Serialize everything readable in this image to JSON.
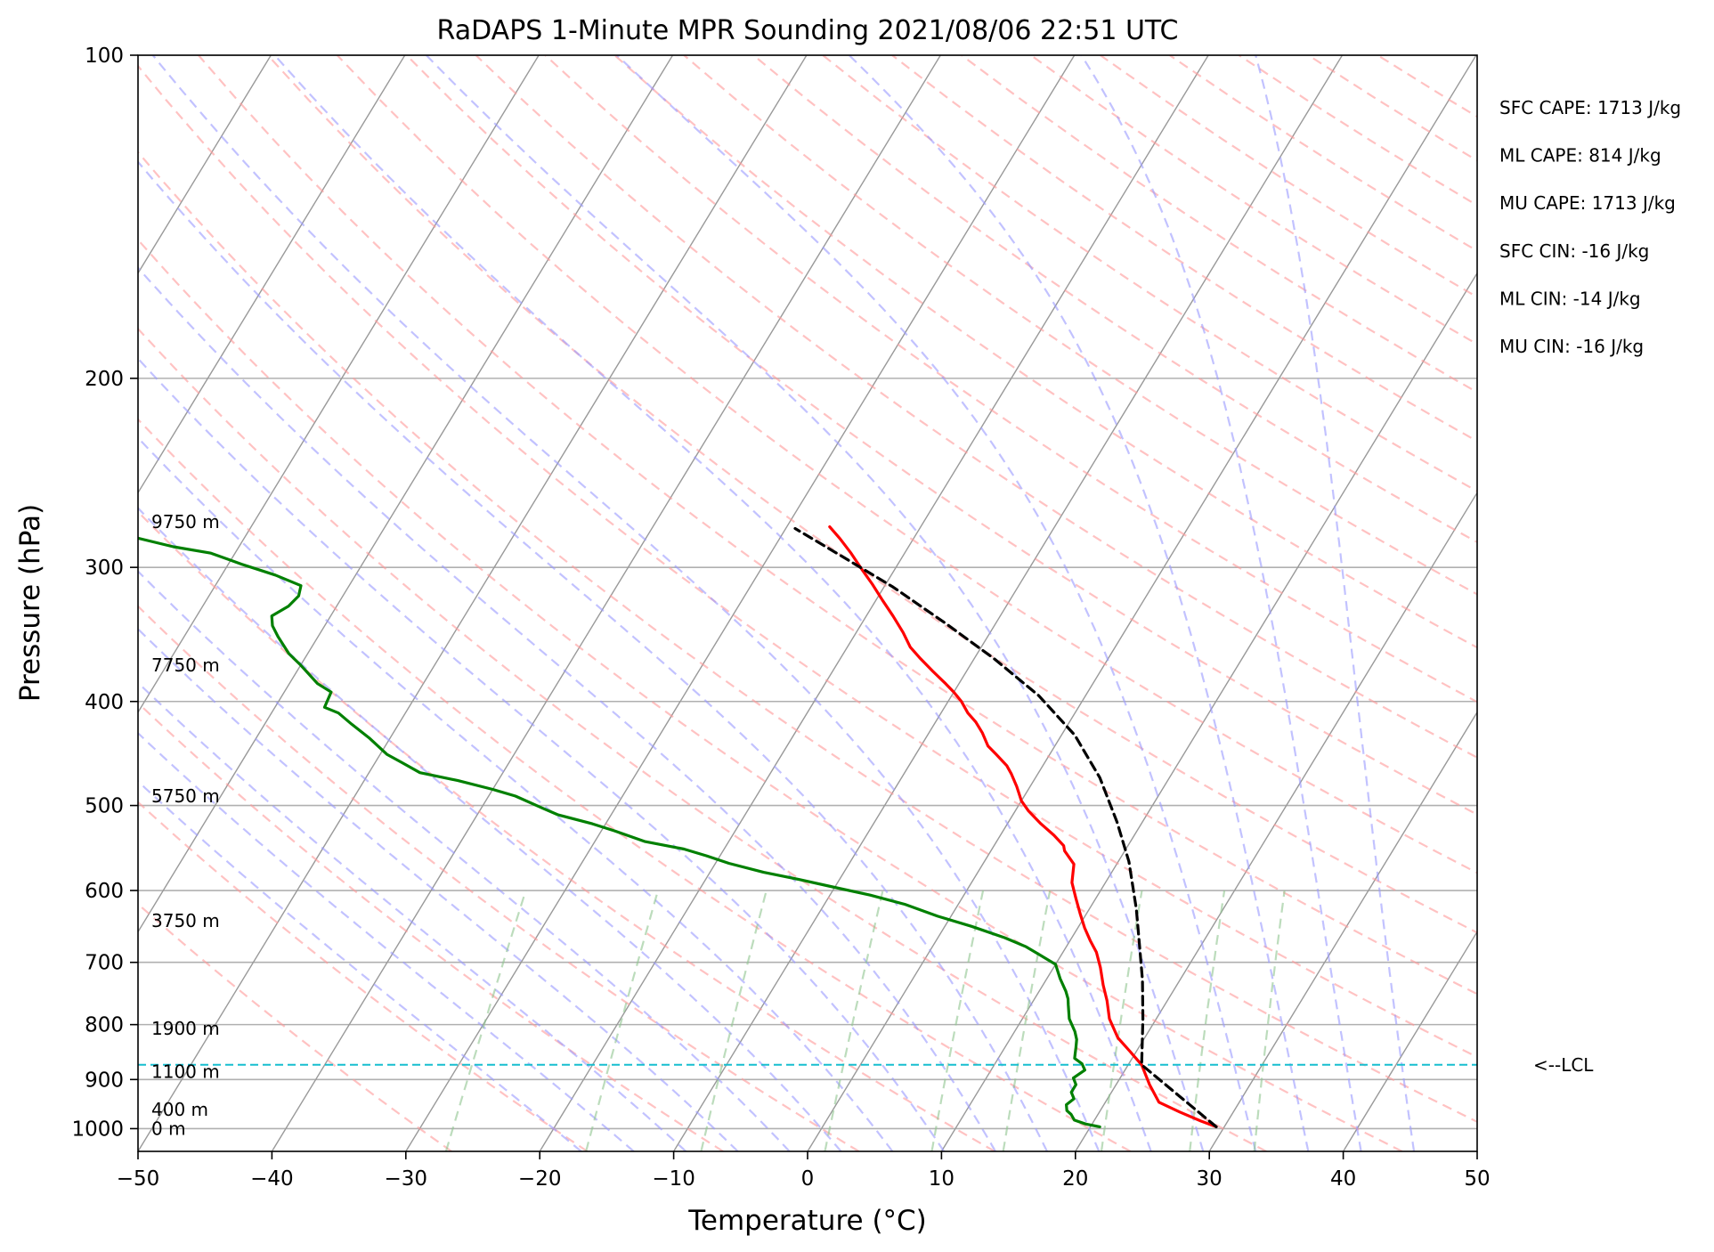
{
  "chart_data": {
    "type": "line",
    "title": "RaDAPS 1-Minute MPR Sounding 2021/08/06 22:51 UTC",
    "xlabel": "Temperature (°C)",
    "ylabel": "Pressure (hPa)",
    "xlim": [
      -50,
      50
    ],
    "ylim": [
      1050,
      100
    ],
    "y_scale": "log",
    "skew": "skew-T log-p diagram",
    "grid": true,
    "x_ticks": [
      -50,
      -40,
      -30,
      -20,
      -10,
      0,
      10,
      20,
      30,
      40,
      50
    ],
    "x_tick_labels": [
      "−50",
      "−40",
      "−30",
      "−20",
      "−10",
      "0",
      "10",
      "20",
      "30",
      "40",
      "50"
    ],
    "y_ticks": [
      100,
      200,
      300,
      400,
      500,
      600,
      700,
      800,
      900,
      1000
    ],
    "y_tick_labels": [
      "100",
      "200",
      "300",
      "400",
      "500",
      "600",
      "700",
      "800",
      "900",
      "1000"
    ],
    "height_labels": [
      {
        "text": "9750 m",
        "p": 272
      },
      {
        "text": "7750 m",
        "p": 370
      },
      {
        "text": "5750 m",
        "p": 490
      },
      {
        "text": "3750 m",
        "p": 640
      },
      {
        "text": "1900 m",
        "p": 807
      },
      {
        "text": "1100 m",
        "p": 885
      },
      {
        "text": "400 m",
        "p": 960
      },
      {
        "text": "0 m",
        "p": 1000
      }
    ],
    "indices": [
      "SFC CAPE: 1713 J/kg",
      "ML CAPE: 814 J/kg",
      "MU CAPE: 1713 J/kg",
      "SFC CIN: -16 J/kg",
      "ML CIN: -14 J/kg",
      "MU CIN: -16 J/kg"
    ],
    "lcl": {
      "p": 872,
      "label": "<--LCL",
      "color": "#17becf"
    },
    "colors": {
      "temperature": "#ff0000",
      "dewpoint": "#008000",
      "parcel": "#000000",
      "dry_adiabats": "#ff9999",
      "moist_adiabats": "#9999ff",
      "mixing_ratio": "#8fc58f",
      "isotherms": "#999999",
      "isobars": "#b0b0b0"
    },
    "series": [
      {
        "name": "temperature",
        "points": [
          {
            "t": 29.4,
            "p": 996
          },
          {
            "t": 28.0,
            "p": 984
          },
          {
            "t": 26.0,
            "p": 965
          },
          {
            "t": 24.0,
            "p": 945
          },
          {
            "t": 22.5,
            "p": 910
          },
          {
            "t": 21.0,
            "p": 872
          },
          {
            "t": 19.5,
            "p": 847
          },
          {
            "t": 18.0,
            "p": 823
          },
          {
            "t": 16.5,
            "p": 790
          },
          {
            "t": 15.5,
            "p": 760
          },
          {
            "t": 14.5,
            "p": 735
          },
          {
            "t": 13.5,
            "p": 708
          },
          {
            "t": 12.5,
            "p": 685
          },
          {
            "t": 11.5,
            "p": 668
          },
          {
            "t": 10.5,
            "p": 650
          },
          {
            "t": 9.5,
            "p": 630
          },
          {
            "t": 8.5,
            "p": 610
          },
          {
            "t": 7.5,
            "p": 590
          },
          {
            "t": 6.8,
            "p": 567
          },
          {
            "t": 5.5,
            "p": 551
          },
          {
            "t": 5.2,
            "p": 545
          },
          {
            "t": 4.0,
            "p": 533
          },
          {
            "t": 2.5,
            "p": 520
          },
          {
            "t": 1.0,
            "p": 506
          },
          {
            "t": 0.0,
            "p": 495
          },
          {
            "t": -1.0,
            "p": 480
          },
          {
            "t": -2.0,
            "p": 467
          },
          {
            "t": -2.7,
            "p": 459
          },
          {
            "t": -4.0,
            "p": 448
          },
          {
            "t": -5.0,
            "p": 440
          },
          {
            "t": -6.0,
            "p": 428
          },
          {
            "t": -7.0,
            "p": 418
          },
          {
            "t": -8.0,
            "p": 410
          },
          {
            "t": -9.0,
            "p": 400
          },
          {
            "t": -10.0,
            "p": 392
          },
          {
            "t": -11.0,
            "p": 385
          },
          {
            "t": -12.5,
            "p": 375
          },
          {
            "t": -14.0,
            "p": 365
          },
          {
            "t": -15.3,
            "p": 356
          },
          {
            "t": -16.5,
            "p": 345
          },
          {
            "t": -18.0,
            "p": 333
          },
          {
            "t": -19.5,
            "p": 322
          },
          {
            "t": -21.0,
            "p": 311
          },
          {
            "t": -22.5,
            "p": 301
          },
          {
            "t": -24.0,
            "p": 291
          },
          {
            "t": -25.5,
            "p": 282
          },
          {
            "t": -26.8,
            "p": 275
          }
        ]
      },
      {
        "name": "dewpoint",
        "points": [
          {
            "t": 20.7,
            "p": 996
          },
          {
            "t": 19.5,
            "p": 990
          },
          {
            "t": 18.5,
            "p": 982
          },
          {
            "t": 18.0,
            "p": 970
          },
          {
            "t": 17.5,
            "p": 962
          },
          {
            "t": 17.2,
            "p": 950
          },
          {
            "t": 17.5,
            "p": 938
          },
          {
            "t": 17.0,
            "p": 925
          },
          {
            "t": 17.0,
            "p": 910
          },
          {
            "t": 16.5,
            "p": 897
          },
          {
            "t": 17.0,
            "p": 882
          },
          {
            "t": 16.5,
            "p": 870
          },
          {
            "t": 15.7,
            "p": 860
          },
          {
            "t": 15.5,
            "p": 850
          },
          {
            "t": 15.3,
            "p": 840
          },
          {
            "t": 15.0,
            "p": 826
          },
          {
            "t": 14.5,
            "p": 812
          },
          {
            "t": 13.5,
            "p": 790
          },
          {
            "t": 12.8,
            "p": 767
          },
          {
            "t": 12.5,
            "p": 757
          },
          {
            "t": 12.0,
            "p": 745
          },
          {
            "t": 11.0,
            "p": 725
          },
          {
            "t": 10.0,
            "p": 703
          },
          {
            "t": 8.3,
            "p": 688
          },
          {
            "t": 7.0,
            "p": 677
          },
          {
            "t": 5.0,
            "p": 664
          },
          {
            "t": 2.0,
            "p": 648
          },
          {
            "t": -1.0,
            "p": 634
          },
          {
            "t": -4.0,
            "p": 618
          },
          {
            "t": -7.0,
            "p": 606
          },
          {
            "t": -10.0,
            "p": 596
          },
          {
            "t": -13.0,
            "p": 586
          },
          {
            "t": -16.0,
            "p": 577
          },
          {
            "t": -19.0,
            "p": 566
          },
          {
            "t": -21.0,
            "p": 557
          },
          {
            "t": -23.0,
            "p": 549
          },
          {
            "t": -26.3,
            "p": 540
          },
          {
            "t": -29.0,
            "p": 528
          },
          {
            "t": -31.0,
            "p": 520
          },
          {
            "t": -34.0,
            "p": 510
          },
          {
            "t": -35.4,
            "p": 503
          },
          {
            "t": -38.0,
            "p": 490
          },
          {
            "t": -40.0,
            "p": 483
          },
          {
            "t": -43.0,
            "p": 474
          },
          {
            "t": -46.2,
            "p": 466
          },
          {
            "t": -48.0,
            "p": 456
          },
          {
            "t": -49.5,
            "p": 448
          },
          {
            "t": -51.5,
            "p": 433
          },
          {
            "t": -53.5,
            "p": 420
          },
          {
            "t": -55.0,
            "p": 410
          },
          {
            "t": -56.3,
            "p": 405
          },
          {
            "t": -56.5,
            "p": 392
          },
          {
            "t": -57.9,
            "p": 385
          },
          {
            "t": -60.0,
            "p": 370
          },
          {
            "t": -61.4,
            "p": 361
          },
          {
            "t": -63.0,
            "p": 348
          },
          {
            "t": -63.9,
            "p": 340
          },
          {
            "t": -64.4,
            "p": 333
          },
          {
            "t": -63.6,
            "p": 326
          },
          {
            "t": -63.3,
            "p": 319
          },
          {
            "t": -63.6,
            "p": 312
          },
          {
            "t": -66.0,
            "p": 305
          },
          {
            "t": -69.0,
            "p": 298
          },
          {
            "t": -71.8,
            "p": 291
          },
          {
            "t": -74.9,
            "p": 287
          },
          {
            "t": -79.0,
            "p": 280
          },
          {
            "t": -82.9,
            "p": 275
          }
        ]
      },
      {
        "name": "parcel",
        "points": [
          {
            "t": 29.4,
            "p": 996
          },
          {
            "t": 21.0,
            "p": 872
          },
          {
            "t": 19.0,
            "p": 790
          },
          {
            "t": 17.2,
            "p": 727
          },
          {
            "t": 15.3,
            "p": 672
          },
          {
            "t": 13.5,
            "p": 624
          },
          {
            "t": 10.8,
            "p": 564
          },
          {
            "t": 8.1,
            "p": 518
          },
          {
            "t": 4.8,
            "p": 471
          },
          {
            "t": 1.0,
            "p": 430
          },
          {
            "t": -3.5,
            "p": 395
          },
          {
            "t": -8.5,
            "p": 365
          },
          {
            "t": -13.8,
            "p": 338
          },
          {
            "t": -19.3,
            "p": 313
          },
          {
            "t": -24.8,
            "p": 292
          },
          {
            "t": -29.3,
            "p": 276
          }
        ]
      }
    ]
  }
}
